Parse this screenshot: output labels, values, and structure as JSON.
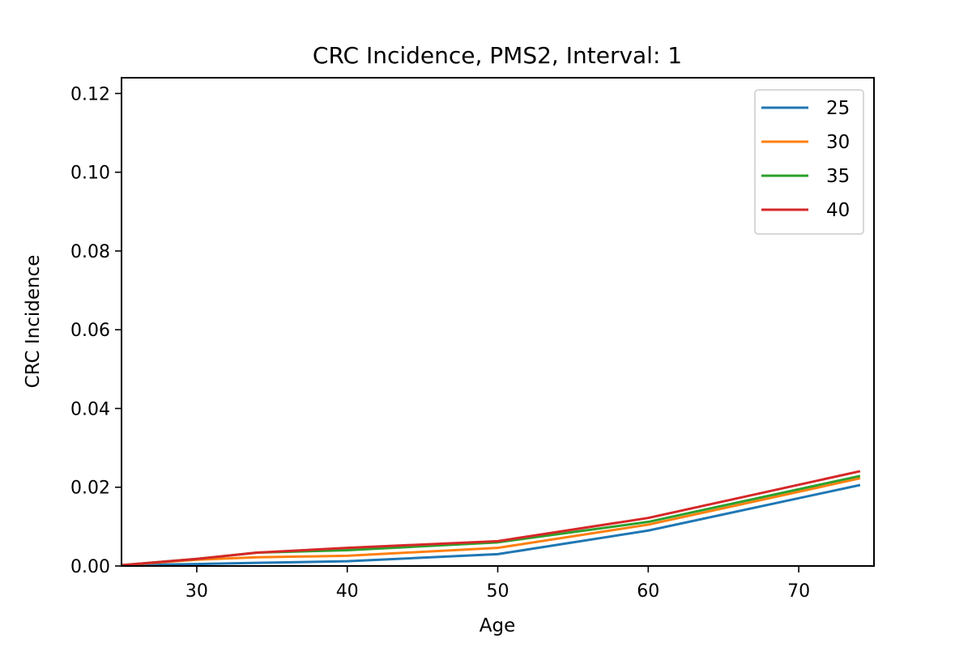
{
  "chart_data": {
    "type": "line",
    "title": "CRC Incidence, PMS2, Interval: 1",
    "xlabel": "Age",
    "ylabel": "CRC Incidence",
    "xlim": [
      25,
      75
    ],
    "ylim": [
      0,
      0.124
    ],
    "xticks": [
      30,
      40,
      50,
      60,
      70
    ],
    "xtick_labels": [
      "30",
      "40",
      "50",
      "60",
      "70"
    ],
    "yticks": [
      0,
      0.02,
      0.04,
      0.06,
      0.08,
      0.1,
      0.12
    ],
    "ytick_labels": [
      "0.00",
      "0.02",
      "0.04",
      "0.06",
      "0.08",
      "0.10",
      "0.12"
    ],
    "grid": false,
    "legend_position": "top-right",
    "x": [
      25,
      30,
      34,
      40,
      50,
      60,
      74
    ],
    "series": [
      {
        "name": "25",
        "color": "#1f77b4",
        "values": [
          0.0002,
          0.0005,
          0.0008,
          0.0012,
          0.003,
          0.009,
          0.0205
        ]
      },
      {
        "name": "30",
        "color": "#ff7f0e",
        "values": [
          0.0002,
          0.0016,
          0.0022,
          0.0026,
          0.0046,
          0.0105,
          0.0222
        ]
      },
      {
        "name": "35",
        "color": "#2ca02c",
        "values": [
          0.0002,
          0.0018,
          0.0034,
          0.004,
          0.006,
          0.0112,
          0.0228
        ]
      },
      {
        "name": "40",
        "color": "#d62728",
        "values": [
          0.0002,
          0.0018,
          0.0034,
          0.0046,
          0.0063,
          0.0122,
          0.024
        ]
      }
    ]
  }
}
